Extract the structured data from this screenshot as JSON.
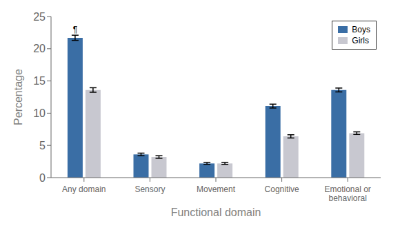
{
  "chart_data": {
    "type": "bar",
    "categories": [
      "Any domain",
      "Sensory",
      "Movement",
      "Cognitive",
      "Emotional or\nbehavioral"
    ],
    "series": [
      {
        "name": "Boys",
        "color": "#3A6EA5",
        "values": [
          21.7,
          3.6,
          2.2,
          11.1,
          13.6
        ],
        "errors": [
          0.4,
          0.2,
          0.15,
          0.3,
          0.3
        ]
      },
      {
        "name": "Girls",
        "color": "#C8C8D0",
        "values": [
          13.6,
          3.2,
          2.2,
          6.4,
          6.9
        ],
        "errors": [
          0.35,
          0.2,
          0.15,
          0.25,
          0.2
        ]
      }
    ],
    "xlabel": "Functional domain",
    "ylabel": "Percentage",
    "ylim": [
      0,
      25
    ],
    "yticks": [
      0,
      5,
      10,
      15,
      20,
      25
    ],
    "legend": "upper right",
    "annotation": "¶",
    "grid": false
  }
}
